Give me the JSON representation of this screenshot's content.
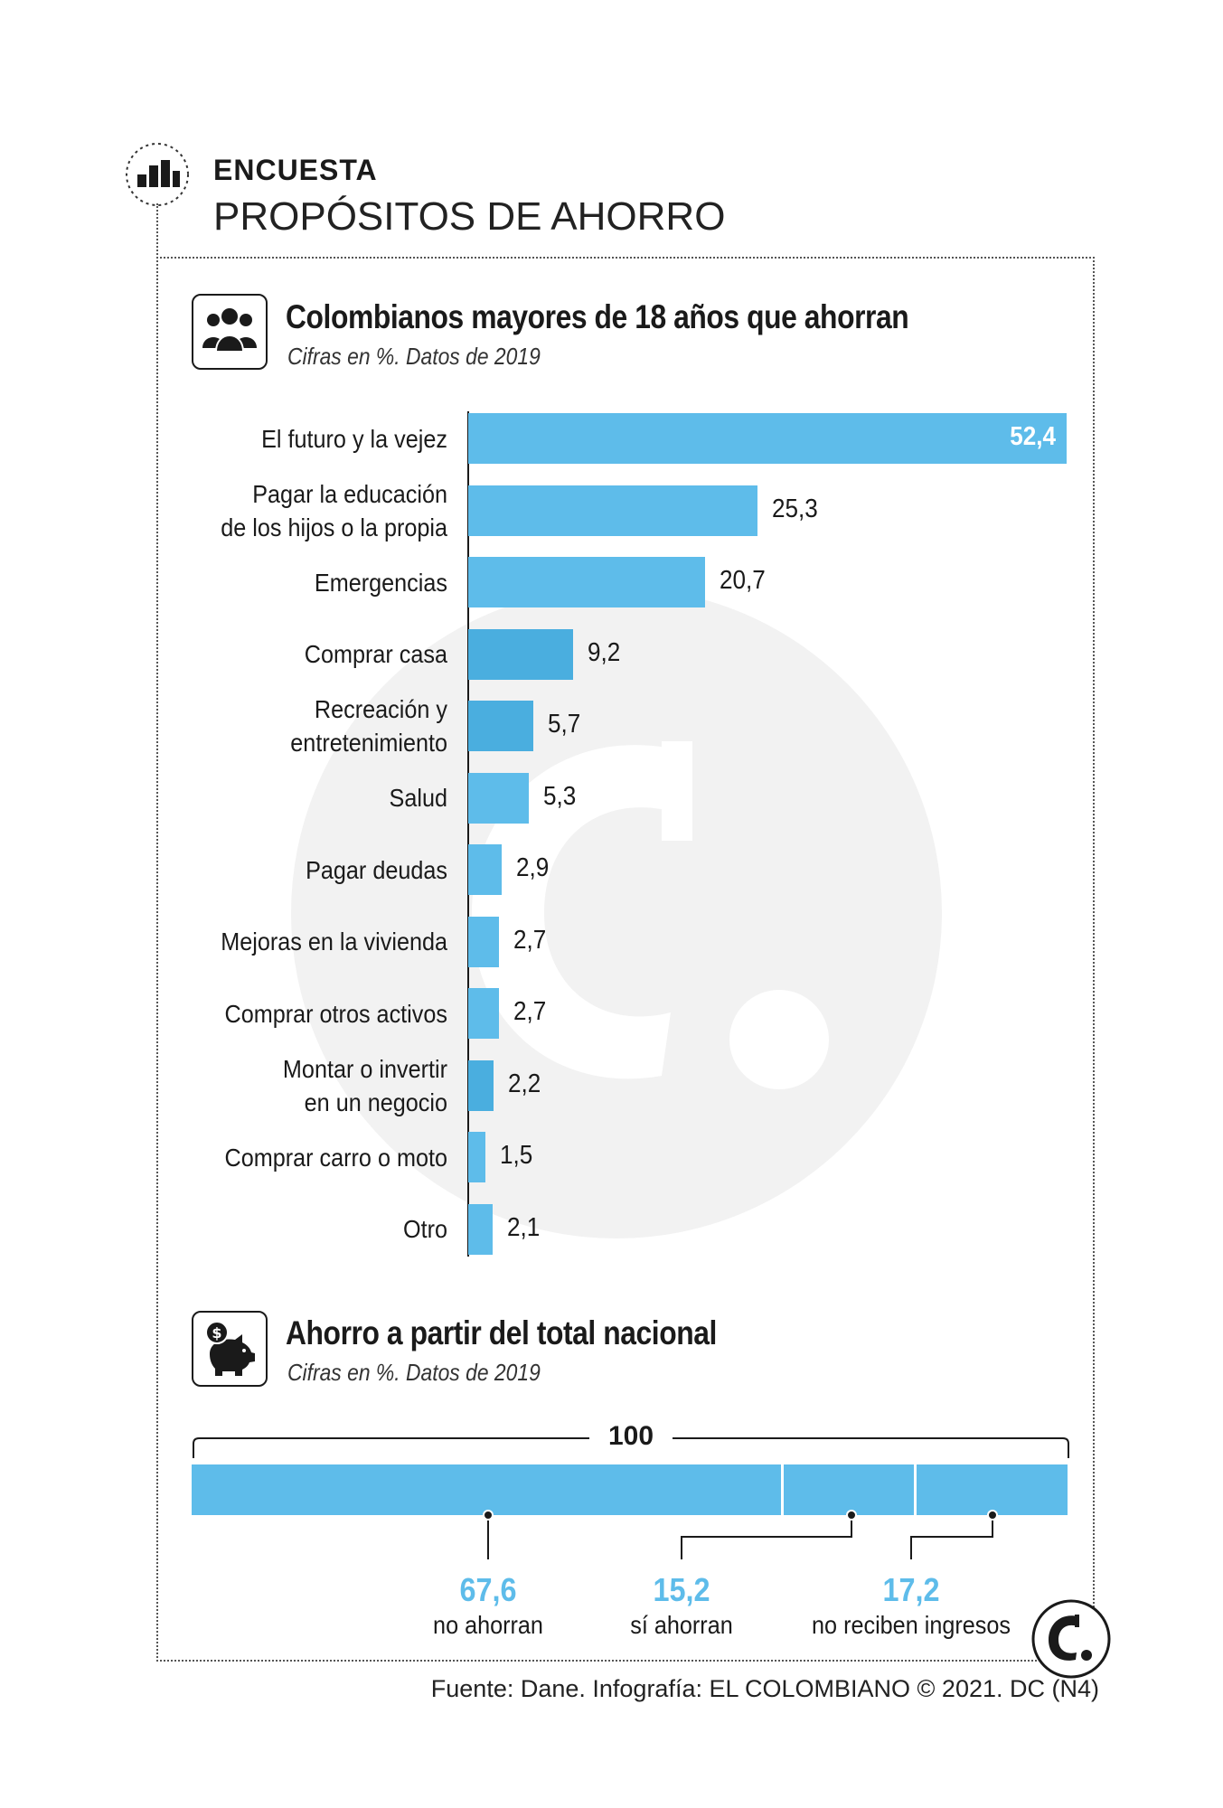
{
  "header": {
    "kicker": "ENCUESTA",
    "headline": "PROPÓSITOS DE AHORRO"
  },
  "section1": {
    "title": "Colombianos mayores de 18 años que ahorran",
    "subtitle": "Cifras en %. Datos de 2019",
    "icon": "people-group-icon"
  },
  "chart_data": [
    {
      "type": "bar",
      "orientation": "horizontal",
      "title": "Colombianos mayores de 18 años que ahorran",
      "subtitle": "Cifras en %. Datos de 2019",
      "categories": [
        [
          "El futuro y la vejez"
        ],
        [
          "Pagar la educación",
          "de los hijos o la propia"
        ],
        [
          "Emergencias"
        ],
        [
          "Comprar casa"
        ],
        [
          "Recreación y",
          "entretenimiento"
        ],
        [
          "Salud"
        ],
        [
          "Pagar deudas"
        ],
        [
          "Mejoras en la vivienda"
        ],
        [
          "Comprar otros activos"
        ],
        [
          "Montar o invertir",
          "en un negocio"
        ],
        [
          "Comprar carro o moto"
        ],
        [
          "Otro"
        ]
      ],
      "values": [
        52.4,
        25.3,
        20.7,
        9.2,
        5.7,
        5.3,
        2.9,
        2.7,
        2.7,
        2.2,
        1.5,
        2.1
      ],
      "value_labels": [
        "52,4",
        "25,3",
        "20,7",
        "9,2",
        "5,7",
        "5,3",
        "2,9",
        "2,7",
        "2,7",
        "2,2",
        "1,5",
        "2,1"
      ],
      "xlim": [
        0,
        52.4
      ],
      "bar_color": "#5ebcea",
      "bar_color_dark": "#4aaedf",
      "grid": false
    },
    {
      "type": "stacked-bar",
      "title": "Ahorro a partir del total nacional",
      "subtitle": "Cifras en %. Datos de 2019",
      "total": 100,
      "total_label": "100",
      "segments": [
        {
          "label": "no ahorran",
          "value": 67.6,
          "value_label": "67,6"
        },
        {
          "label": "sí ahorran",
          "value": 15.2,
          "value_label": "15,2"
        },
        {
          "label": "no reciben ingresos",
          "value": 17.2,
          "value_label": "17,2"
        }
      ],
      "bar_color": "#5ebcea"
    }
  ],
  "section2": {
    "title": "Ahorro a partir del total nacional",
    "subtitle": "Cifras en %. Datos de 2019",
    "icon": "piggy-bank-icon"
  },
  "footer": {
    "source": "Fuente: Dane. Infografía: EL COLOMBIANO © 2021. DC (N4)"
  },
  "colors": {
    "accent": "#5ebcea",
    "text": "#1a1a1a"
  }
}
